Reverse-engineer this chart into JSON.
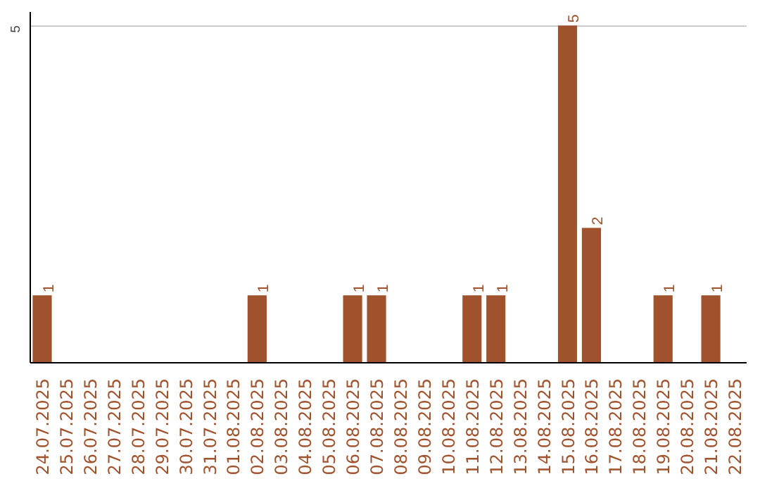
{
  "chart_data": {
    "type": "bar",
    "categories": [
      "24.07.2025",
      "25.07.2025",
      "26.07.2025",
      "27.07.2025",
      "28.07.2025",
      "29.07.2025",
      "30.07.2025",
      "31.07.2025",
      "01.08.2025",
      "02.08.2025",
      "03.08.2025",
      "04.08.2025",
      "05.08.2025",
      "06.08.2025",
      "07.08.2025",
      "08.08.2025",
      "09.08.2025",
      "10.08.2025",
      "11.08.2025",
      "12.08.2025",
      "13.08.2025",
      "14.08.2025",
      "15.08.2025",
      "16.08.2025",
      "17.08.2025",
      "18.08.2025",
      "19.08.2025",
      "20.08.2025",
      "21.08.2025",
      "22.08.2025"
    ],
    "values": [
      1,
      0,
      0,
      0,
      0,
      0,
      0,
      0,
      0,
      1,
      0,
      0,
      0,
      1,
      1,
      0,
      0,
      0,
      1,
      1,
      0,
      0,
      5,
      2,
      0,
      0,
      1,
      0,
      1,
      0
    ],
    "value_labels": [
      "1",
      null,
      null,
      null,
      null,
      null,
      null,
      null,
      null,
      "1",
      null,
      null,
      null,
      "1",
      "1",
      null,
      null,
      null,
      "1",
      "1",
      null,
      null,
      "5",
      "2",
      null,
      null,
      "1",
      null,
      "1",
      null
    ],
    "color": "#a0522d",
    "ylim": [
      0,
      5.2
    ],
    "yticks": [
      5
    ],
    "grid": "y"
  }
}
